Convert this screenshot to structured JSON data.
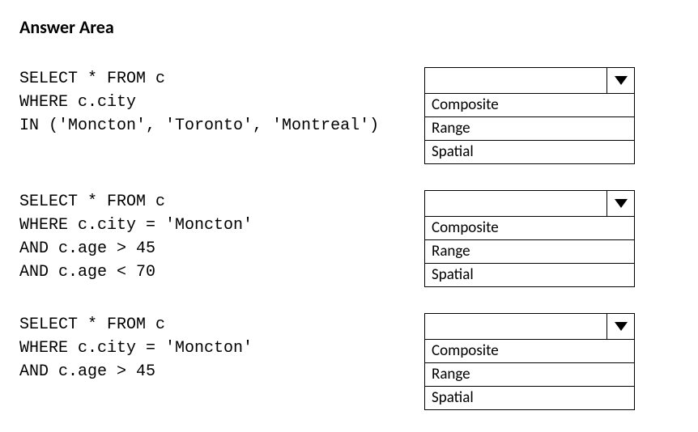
{
  "title": "Answer Area",
  "items": [
    {
      "code": "SELECT * FROM c\nWHERE c.city\nIN ('Moncton', 'Toronto', 'Montreal')",
      "selected": "",
      "options": [
        "Composite",
        "Range",
        "Spatial"
      ]
    },
    {
      "code": "SELECT * FROM c\nWHERE c.city = 'Moncton'\nAND c.age > 45\nAND c.age < 70",
      "selected": "",
      "options": [
        "Composite",
        "Range",
        "Spatial"
      ]
    },
    {
      "code": "SELECT * FROM c\nWHERE c.city = 'Moncton'\nAND c.age > 45",
      "selected": "",
      "options": [
        "Composite",
        "Range",
        "Spatial"
      ]
    }
  ]
}
